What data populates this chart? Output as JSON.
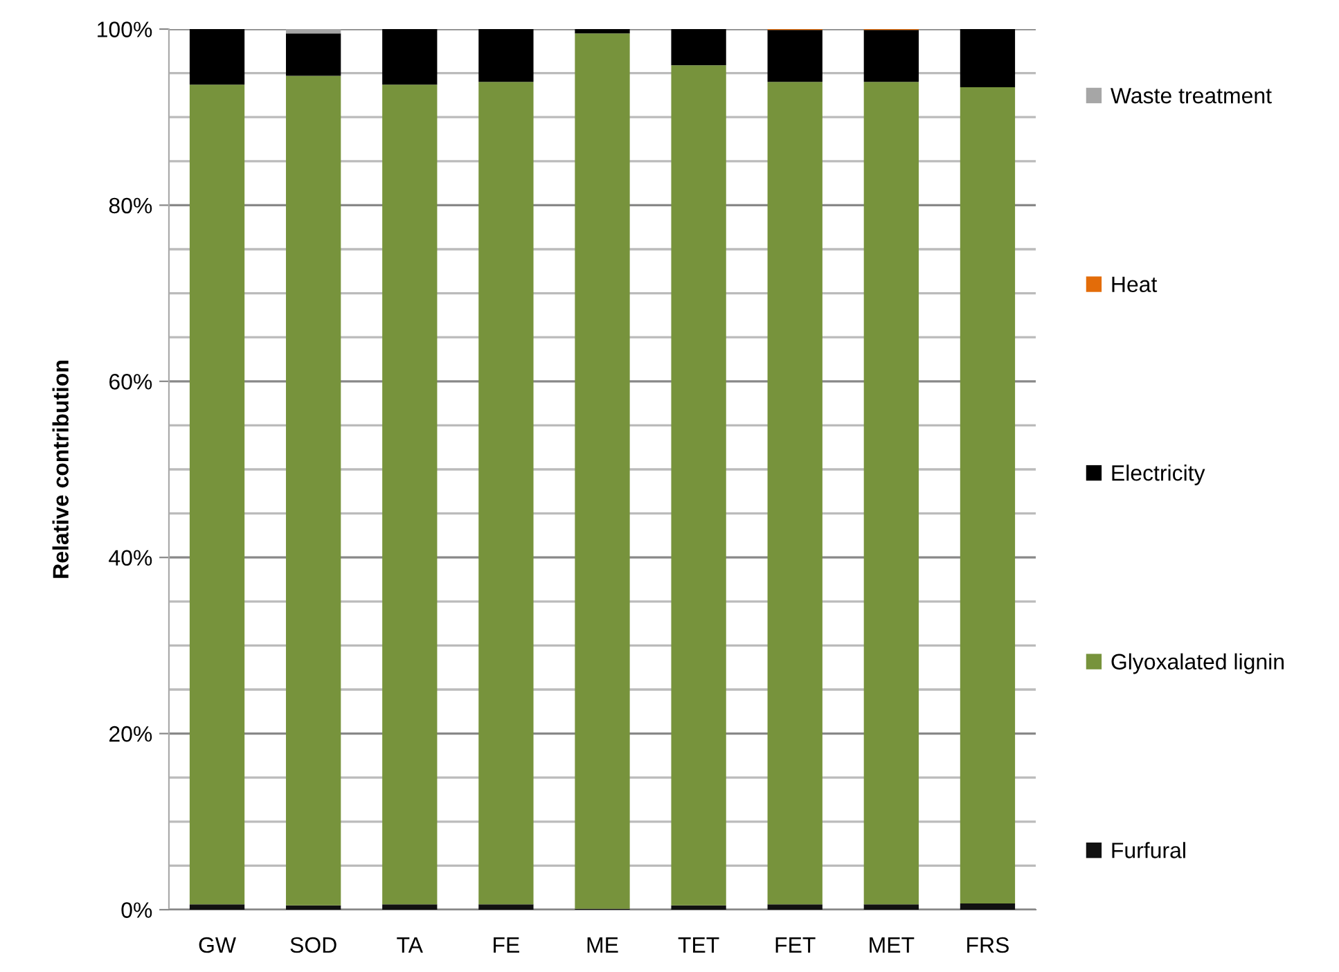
{
  "chart_data": {
    "type": "bar",
    "stacked": true,
    "ylabel": "Relative contribution",
    "categories": [
      "GW",
      "SOD",
      "TA",
      "FE",
      "ME",
      "TET",
      "FET",
      "MET",
      "FRS"
    ],
    "series": [
      {
        "name": "Furfural",
        "color": "#111111",
        "values": [
          0.6,
          0.5,
          0.6,
          0.6,
          0.1,
          0.5,
          0.6,
          0.6,
          0.7
        ]
      },
      {
        "name": "Glyoxalated lignin",
        "color": "#77933c",
        "values": [
          93.1,
          94.2,
          93.1,
          93.4,
          99.4,
          95.4,
          93.4,
          93.4,
          92.7
        ]
      },
      {
        "name": "Electricity",
        "color": "#000000",
        "values": [
          6.3,
          4.8,
          6.3,
          6.0,
          0.5,
          4.1,
          5.9,
          5.9,
          6.6
        ]
      },
      {
        "name": "Heat",
        "color": "#e36c09",
        "values": [
          0,
          0,
          0,
          0,
          0,
          0,
          0.1,
          0.1,
          0
        ]
      },
      {
        "name": "Waste treatment",
        "color": "#a6a6a6",
        "values": [
          0,
          0.5,
          0,
          0,
          0,
          0,
          0,
          0,
          0
        ]
      }
    ],
    "ylim": [
      0,
      100
    ],
    "yticks": [
      {
        "value": 0,
        "label": "0%"
      },
      {
        "value": 5,
        "label": null
      },
      {
        "value": 10,
        "label": null
      },
      {
        "value": 15,
        "label": null
      },
      {
        "value": 20,
        "label": "20%"
      },
      {
        "value": 25,
        "label": null
      },
      {
        "value": 30,
        "label": null
      },
      {
        "value": 35,
        "label": null
      },
      {
        "value": 40,
        "label": "40%"
      },
      {
        "value": 45,
        "label": null
      },
      {
        "value": 50,
        "label": null
      },
      {
        "value": 55,
        "label": null
      },
      {
        "value": 60,
        "label": "60%"
      },
      {
        "value": 65,
        "label": null
      },
      {
        "value": 70,
        "label": null
      },
      {
        "value": 75,
        "label": null
      },
      {
        "value": 80,
        "label": "80%"
      },
      {
        "value": 85,
        "label": null
      },
      {
        "value": 90,
        "label": null
      },
      {
        "value": 95,
        "label": null
      },
      {
        "value": 100,
        "label": "100%"
      }
    ],
    "grid": "y",
    "legend": "right"
  }
}
